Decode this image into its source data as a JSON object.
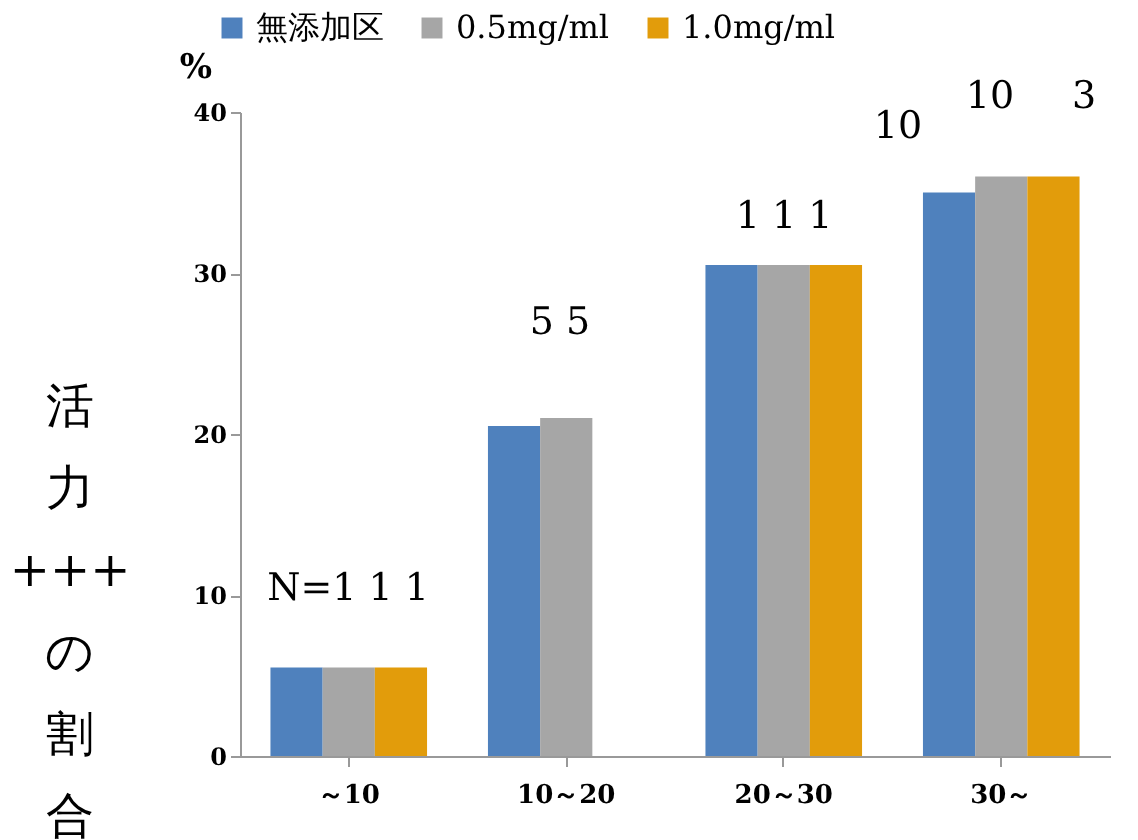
{
  "chart_data": {
    "type": "bar",
    "ylabel": "活力+++の割合",
    "annotations": [
      "%",
      "N=1  1  1",
      "5  5",
      "1  1  1",
      "10",
      "10",
      "3"
    ],
    "categories": [
      "～10",
      "10～20",
      "20～30",
      "30～"
    ],
    "ylim": [
      0,
      40
    ],
    "yticks": [
      0,
      10,
      20,
      30,
      40
    ],
    "grid": false,
    "legend": "top",
    "series": [
      {
        "name": "無添加区",
        "color": "#4f81bd",
        "values": [
          5.5,
          20.5,
          30.5,
          35
        ]
      },
      {
        "name": "0.5mg/ml",
        "color": "#a6a6a6",
        "values": [
          5.5,
          21,
          30.5,
          36
        ]
      },
      {
        "name": "1.0mg/ml",
        "color": "#e29c0b",
        "values": [
          5.5,
          null,
          30.5,
          36
        ]
      }
    ]
  }
}
